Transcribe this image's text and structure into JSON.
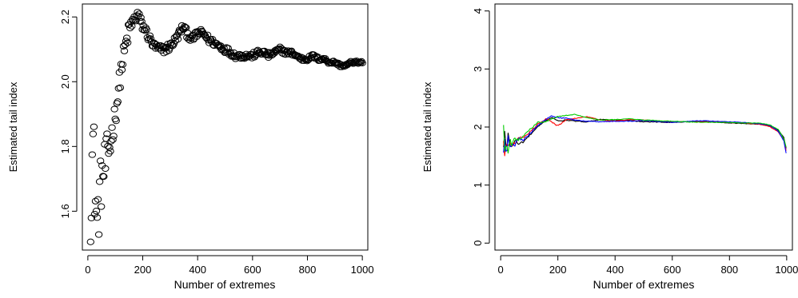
{
  "chart_data": [
    {
      "type": "scatter",
      "title": "",
      "xlabel": "Number of extremes",
      "ylabel": "Estimated tail index",
      "xlim": [
        -20,
        1020
      ],
      "ylim": [
        1.48,
        2.24
      ],
      "xticks": [
        0,
        200,
        400,
        600,
        800,
        1000
      ],
      "yticks": [
        1.6,
        1.8,
        2.0,
        2.2
      ],
      "xtick_labels": [
        "0",
        "200",
        "400",
        "600",
        "800",
        "1000"
      ],
      "ytick_labels": [
        "1.6",
        "1.8",
        "2.0",
        "2.2"
      ],
      "grid": false,
      "marker": "open-circle",
      "point_color": "#000000",
      "x_range": [
        10,
        1000
      ],
      "x_step": 3,
      "curve": [
        [
          10,
          1.63
        ],
        [
          15,
          1.75
        ],
        [
          20,
          1.82
        ],
        [
          25,
          1.68
        ],
        [
          30,
          1.6
        ],
        [
          35,
          1.55
        ],
        [
          40,
          1.62
        ],
        [
          45,
          1.66
        ],
        [
          50,
          1.7
        ],
        [
          60,
          1.73
        ],
        [
          70,
          1.77
        ],
        [
          80,
          1.8
        ],
        [
          90,
          1.85
        ],
        [
          100,
          1.9
        ],
        [
          110,
          1.96
        ],
        [
          120,
          2.03
        ],
        [
          130,
          2.08
        ],
        [
          140,
          2.12
        ],
        [
          150,
          2.16
        ],
        [
          160,
          2.18
        ],
        [
          170,
          2.19
        ],
        [
          180,
          2.21
        ],
        [
          190,
          2.19
        ],
        [
          200,
          2.17
        ],
        [
          210,
          2.16
        ],
        [
          220,
          2.14
        ],
        [
          240,
          2.11
        ],
        [
          260,
          2.1
        ],
        [
          280,
          2.1
        ],
        [
          300,
          2.11
        ],
        [
          320,
          2.13
        ],
        [
          340,
          2.16
        ],
        [
          350,
          2.17
        ],
        [
          360,
          2.15
        ],
        [
          380,
          2.13
        ],
        [
          400,
          2.15
        ],
        [
          420,
          2.15
        ],
        [
          440,
          2.13
        ],
        [
          460,
          2.12
        ],
        [
          480,
          2.11
        ],
        [
          500,
          2.1
        ],
        [
          520,
          2.09
        ],
        [
          540,
          2.08
        ],
        [
          560,
          2.08
        ],
        [
          580,
          2.08
        ],
        [
          600,
          2.08
        ],
        [
          620,
          2.09
        ],
        [
          640,
          2.09
        ],
        [
          660,
          2.08
        ],
        [
          680,
          2.09
        ],
        [
          700,
          2.1
        ],
        [
          720,
          2.09
        ],
        [
          740,
          2.09
        ],
        [
          760,
          2.08
        ],
        [
          780,
          2.07
        ],
        [
          800,
          2.07
        ],
        [
          820,
          2.08
        ],
        [
          840,
          2.07
        ],
        [
          860,
          2.07
        ],
        [
          880,
          2.06
        ],
        [
          900,
          2.06
        ],
        [
          920,
          2.05
        ],
        [
          940,
          2.05
        ],
        [
          960,
          2.06
        ],
        [
          980,
          2.06
        ],
        [
          1000,
          2.06
        ]
      ],
      "noise_profile": [
        [
          10,
          0.13
        ],
        [
          100,
          0.04
        ],
        [
          200,
          0.015
        ],
        [
          1000,
          0.004
        ]
      ]
    },
    {
      "type": "line",
      "title": "",
      "xlabel": "Number of extremes",
      "ylabel": "Estimated tail index",
      "xlim": [
        -20,
        1020
      ],
      "ylim": [
        -0.12,
        4.12
      ],
      "xticks": [
        0,
        200,
        400,
        600,
        800,
        1000
      ],
      "yticks": [
        0,
        1,
        2,
        3,
        4
      ],
      "xtick_labels": [
        "0",
        "200",
        "400",
        "600",
        "800",
        "1000"
      ],
      "ytick_labels": [
        "0",
        "1",
        "2",
        "3",
        "4"
      ],
      "grid": false,
      "x_range": [
        10,
        1000
      ],
      "x_step": 4,
      "series": [
        {
          "color": "#000000",
          "points": [
            [
              10,
              1.65
            ],
            [
              14,
              1.9
            ],
            [
              20,
              1.55
            ],
            [
              26,
              1.92
            ],
            [
              32,
              1.7
            ],
            [
              40,
              1.65
            ],
            [
              50,
              1.78
            ],
            [
              60,
              1.7
            ],
            [
              80,
              1.75
            ],
            [
              100,
              1.85
            ],
            [
              130,
              2.0
            ],
            [
              160,
              2.12
            ],
            [
              180,
              2.17
            ],
            [
              200,
              2.1
            ],
            [
              230,
              2.12
            ],
            [
              260,
              2.1
            ],
            [
              300,
              2.09
            ],
            [
              350,
              2.13
            ],
            [
              400,
              2.12
            ],
            [
              450,
              2.11
            ],
            [
              500,
              2.09
            ],
            [
              600,
              2.08
            ],
            [
              700,
              2.1
            ],
            [
              800,
              2.07
            ],
            [
              850,
              2.06
            ],
            [
              900,
              2.05
            ],
            [
              940,
              2.02
            ],
            [
              970,
              1.95
            ],
            [
              990,
              1.82
            ],
            [
              1000,
              1.58
            ]
          ]
        },
        {
          "color": "#ff0000",
          "points": [
            [
              10,
              1.75
            ],
            [
              14,
              1.5
            ],
            [
              20,
              1.8
            ],
            [
              26,
              1.65
            ],
            [
              32,
              1.78
            ],
            [
              40,
              1.7
            ],
            [
              50,
              1.72
            ],
            [
              60,
              1.8
            ],
            [
              80,
              1.82
            ],
            [
              100,
              1.9
            ],
            [
              130,
              2.05
            ],
            [
              160,
              2.15
            ],
            [
              180,
              2.08
            ],
            [
              200,
              2.02
            ],
            [
              230,
              2.12
            ],
            [
              260,
              2.15
            ],
            [
              300,
              2.18
            ],
            [
              350,
              2.12
            ],
            [
              400,
              2.1
            ],
            [
              450,
              2.13
            ],
            [
              500,
              2.12
            ],
            [
              600,
              2.09
            ],
            [
              700,
              2.09
            ],
            [
              800,
              2.08
            ],
            [
              850,
              2.07
            ],
            [
              900,
              2.05
            ],
            [
              940,
              2.01
            ],
            [
              970,
              1.92
            ],
            [
              990,
              1.78
            ],
            [
              1000,
              1.55
            ]
          ]
        },
        {
          "color": "#0000ff",
          "points": [
            [
              10,
              1.55
            ],
            [
              14,
              1.8
            ],
            [
              20,
              1.45
            ],
            [
              26,
              1.85
            ],
            [
              32,
              1.6
            ],
            [
              40,
              1.72
            ],
            [
              50,
              1.68
            ],
            [
              60,
              1.82
            ],
            [
              80,
              1.78
            ],
            [
              100,
              1.88
            ],
            [
              130,
              2.02
            ],
            [
              160,
              2.14
            ],
            [
              180,
              2.19
            ],
            [
              200,
              2.16
            ],
            [
              230,
              2.15
            ],
            [
              260,
              2.12
            ],
            [
              300,
              2.1
            ],
            [
              350,
              2.09
            ],
            [
              400,
              2.1
            ],
            [
              450,
              2.1
            ],
            [
              500,
              2.11
            ],
            [
              600,
              2.08
            ],
            [
              700,
              2.11
            ],
            [
              800,
              2.09
            ],
            [
              850,
              2.08
            ],
            [
              900,
              2.06
            ],
            [
              940,
              2.03
            ],
            [
              970,
              1.93
            ],
            [
              990,
              1.76
            ],
            [
              1000,
              1.5
            ]
          ]
        },
        {
          "color": "#00cc00",
          "points": [
            [
              10,
              2.02
            ],
            [
              14,
              1.62
            ],
            [
              20,
              1.75
            ],
            [
              26,
              1.58
            ],
            [
              32,
              1.8
            ],
            [
              40,
              1.68
            ],
            [
              50,
              1.82
            ],
            [
              60,
              1.76
            ],
            [
              80,
              1.85
            ],
            [
              100,
              1.95
            ],
            [
              130,
              2.08
            ],
            [
              160,
              2.1
            ],
            [
              180,
              2.15
            ],
            [
              200,
              2.18
            ],
            [
              230,
              2.2
            ],
            [
              260,
              2.22
            ],
            [
              300,
              2.16
            ],
            [
              350,
              2.12
            ],
            [
              400,
              2.13
            ],
            [
              450,
              2.14
            ],
            [
              500,
              2.12
            ],
            [
              600,
              2.1
            ],
            [
              700,
              2.08
            ],
            [
              800,
              2.08
            ],
            [
              850,
              2.07
            ],
            [
              900,
              2.07
            ],
            [
              940,
              2.04
            ],
            [
              970,
              1.96
            ],
            [
              990,
              1.8
            ],
            [
              1000,
              1.62
            ]
          ]
        }
      ],
      "noise_profile": [
        [
          10,
          0.05
        ],
        [
          100,
          0.015
        ],
        [
          300,
          0.006
        ],
        [
          1000,
          0.004
        ]
      ]
    }
  ]
}
